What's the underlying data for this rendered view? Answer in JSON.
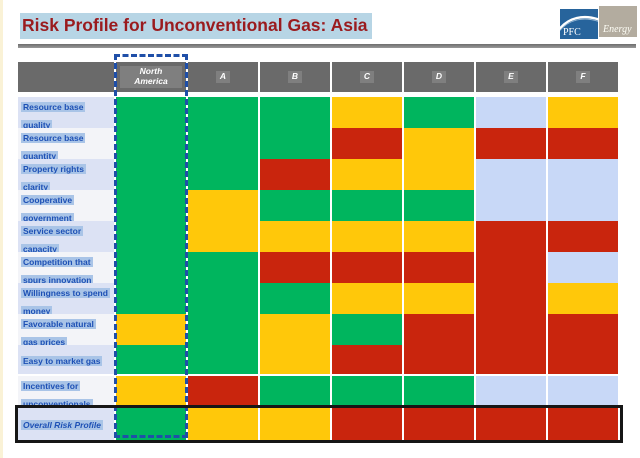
{
  "slide": {
    "title": "Risk Profile for Unconventional Gas: Asia",
    "logo": {
      "left_text": "PFC",
      "right_text": "Energy"
    }
  },
  "colors": {
    "cell_green": "#00B55E",
    "cell_yellow": "#FFC80A",
    "cell_red": "#C9250D",
    "cell_lightblue": "#C8D8F7",
    "header_bg": "#6A6A6A",
    "header_chip": "#7F7F7F",
    "label_text": "#1D50B5",
    "label_chip": "#A9C4E7",
    "row_bg_odd": "#DCE2F4",
    "row_bg_even": "#F3F4F8",
    "title_text": "#9A1B1E",
    "title_chip": "#B7D5E5",
    "accent_dash": "#1F4FA8",
    "logo_blue": "#27649C",
    "logo_gray": "#B3AC9F"
  },
  "table": {
    "columns": [
      {
        "label": "North America",
        "highlighted": true
      },
      {
        "label": "A"
      },
      {
        "label": "B"
      },
      {
        "label": "C"
      },
      {
        "label": "D"
      },
      {
        "label": "E"
      },
      {
        "label": "F"
      }
    ],
    "rows": [
      {
        "label": "Resource base quality",
        "cells": [
          "green",
          "green",
          "green",
          "yellow",
          "green",
          "lightblue",
          "yellow"
        ]
      },
      {
        "label": "Resource base quantity",
        "cells": [
          "green",
          "green",
          "green",
          "red",
          "yellow",
          "red",
          "red"
        ]
      },
      {
        "label": "Property rights clarity",
        "cells": [
          "green",
          "green",
          "red",
          "yellow",
          "yellow",
          "lightblue",
          "lightblue"
        ]
      },
      {
        "label": "Cooperative government",
        "cells": [
          "green",
          "yellow",
          "green",
          "green",
          "green",
          "lightblue",
          "lightblue"
        ]
      },
      {
        "label": "Service sector capacity",
        "cells": [
          "green",
          "yellow",
          "yellow",
          "yellow",
          "yellow",
          "red",
          "red"
        ]
      },
      {
        "label": "Competition that spurs innovation",
        "cells": [
          "green",
          "green",
          "red",
          "red",
          "red",
          "red",
          "lightblue"
        ]
      },
      {
        "label": "Willingness to spend money",
        "cells": [
          "green",
          "green",
          "green",
          "yellow",
          "yellow",
          "red",
          "yellow"
        ]
      },
      {
        "label": "Favorable natural gas prices",
        "cells": [
          "yellow",
          "green",
          "yellow",
          "green",
          "red",
          "red",
          "red"
        ]
      },
      {
        "label": "Easy to market gas",
        "cells": [
          "green",
          "green",
          "yellow",
          "red",
          "red",
          "red",
          "red"
        ]
      },
      {
        "label": "Incentives for unconventionals",
        "cells": [
          "yellow",
          "red",
          "green",
          "green",
          "green",
          "lightblue",
          "lightblue"
        ]
      },
      {
        "label": "Overall Risk Profile",
        "cells": [
          "green",
          "yellow",
          "yellow",
          "red",
          "red",
          "red",
          "red"
        ],
        "emphasis": true
      }
    ]
  },
  "chart_data": {
    "type": "heatmap",
    "title": "Risk Profile for Unconventional Gas: Asia",
    "columns": [
      "North America",
      "A",
      "B",
      "C",
      "D",
      "E",
      "F"
    ],
    "rows": [
      "Resource base quality",
      "Resource base quantity",
      "Property rights clarity",
      "Cooperative government",
      "Service sector capacity",
      "Competition that spurs innovation",
      "Willingness to spend money",
      "Favorable natural gas prices",
      "Easy to market gas",
      "Incentives for unconventionals",
      "Overall Risk Profile"
    ],
    "values": [
      [
        "green",
        "green",
        "green",
        "yellow",
        "green",
        "lightblue",
        "yellow"
      ],
      [
        "green",
        "green",
        "green",
        "red",
        "yellow",
        "red",
        "red"
      ],
      [
        "green",
        "green",
        "red",
        "yellow",
        "yellow",
        "lightblue",
        "lightblue"
      ],
      [
        "green",
        "yellow",
        "green",
        "green",
        "green",
        "lightblue",
        "lightblue"
      ],
      [
        "green",
        "yellow",
        "yellow",
        "yellow",
        "yellow",
        "red",
        "red"
      ],
      [
        "green",
        "green",
        "red",
        "red",
        "red",
        "red",
        "lightblue"
      ],
      [
        "green",
        "green",
        "green",
        "yellow",
        "yellow",
        "red",
        "yellow"
      ],
      [
        "yellow",
        "green",
        "yellow",
        "green",
        "red",
        "red",
        "red"
      ],
      [
        "green",
        "green",
        "yellow",
        "red",
        "red",
        "red",
        "red"
      ],
      [
        "yellow",
        "red",
        "green",
        "green",
        "green",
        "lightblue",
        "lightblue"
      ],
      [
        "green",
        "yellow",
        "yellow",
        "red",
        "red",
        "red",
        "red"
      ]
    ],
    "cell_color_hex": {
      "green": "#00B55E",
      "yellow": "#FFC80A",
      "red": "#C9250D",
      "lightblue": "#C8D8F7"
    },
    "layout": {
      "highlighted_column": "North America",
      "emphasized_row": "Overall Risk Profile",
      "legend": false
    }
  }
}
